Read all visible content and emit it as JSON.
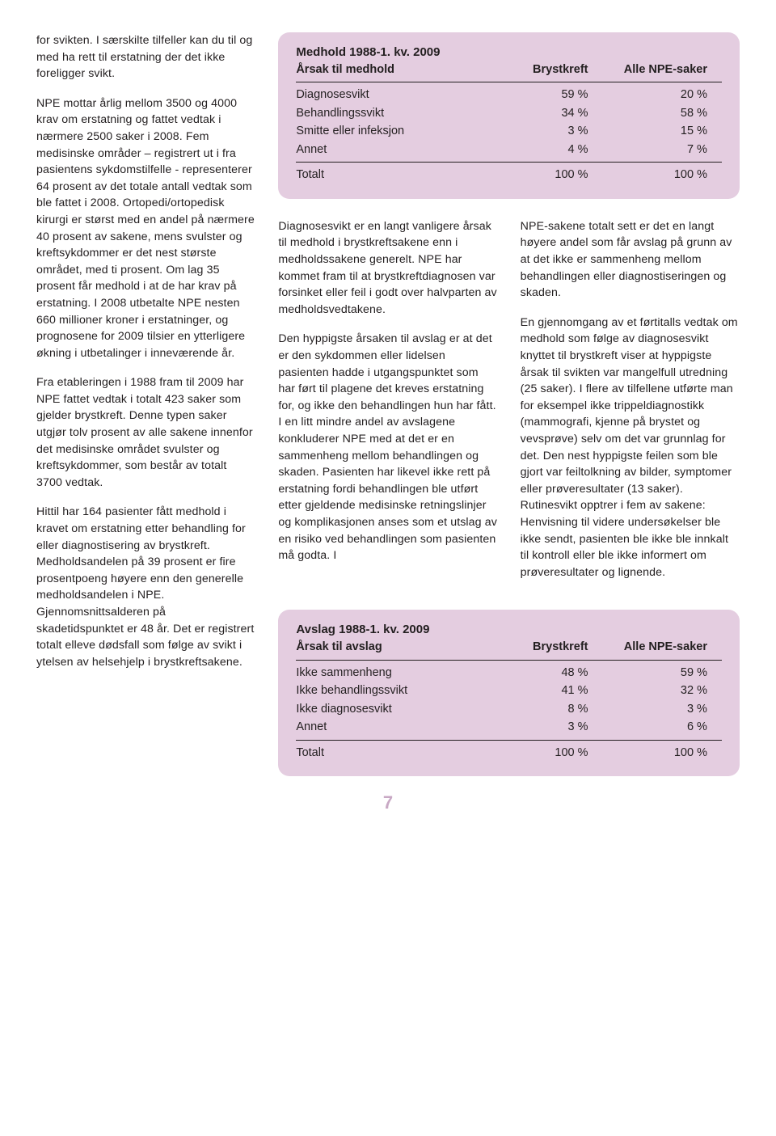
{
  "col1": {
    "p1": "for svikten. I særskilte tilfeller kan du til og med ha rett til erstatning der det ikke foreligger svikt.",
    "p2": "NPE mottar årlig mellom 3500 og 4000 krav om erstatning og fattet vedtak i nærmere 2500 saker i 2008. Fem medisinske områder – registrert ut i fra pasientens sykdomstilfelle - representerer 64 prosent av det totale antall vedtak som ble fattet i 2008. Ortopedi/ortopedisk kirurgi er størst med en andel på nærmere 40 prosent av sakene, mens svulster og kreftsykdommer er det nest største området, med ti prosent. Om lag 35 prosent får medhold i at de har krav på erstatning. I 2008 utbetalte NPE nesten 660 millioner kroner i erstatninger, og prognosene for 2009 tilsier en ytterligere økning i utbetalinger i inneværende år.",
    "p3": "Fra etableringen i 1988 fram til 2009 har NPE fattet vedtak i totalt 423 saker som gjelder brystkreft. Denne typen saker utgjør tolv prosent av alle sakene innenfor det medisinske området svulster og kreftsykdommer, som består av totalt 3700 vedtak.",
    "p4": "Hittil har 164 pasienter fått medhold i kravet om erstatning etter behandling for eller diagnostisering av brystkreft. Medholdsandelen på 39 prosent er fire prosentpoeng høyere enn den generelle medholdsandelen i NPE. Gjennomsnittsalderen på skadetidspunktet er 48 år. Det er registrert totalt elleve dødsfall som følge av svikt i ytelsen av helsehjelp i brystkreftsakene."
  },
  "medhold": {
    "title": "Medhold 1988-1. kv. 2009",
    "head": {
      "c1": "Årsak til medhold",
      "c2": "Brystkreft",
      "c3": "Alle NPE-saker"
    },
    "rows": [
      {
        "c1": "Diagnosesvikt",
        "c2": "59 %",
        "c3": "20 %"
      },
      {
        "c1": "Behandlingssvikt",
        "c2": "34 %",
        "c3": "58 %"
      },
      {
        "c1": "Smitte eller infeksjon",
        "c2": "3 %",
        "c3": "15 %"
      },
      {
        "c1": "Annet",
        "c2": "4 %",
        "c3": "7 %"
      }
    ],
    "total": {
      "c1": "Totalt",
      "c2": "100 %",
      "c3": "100 %"
    }
  },
  "midL": {
    "p1": "Diagnosesvikt er en langt vanligere årsak til medhold i brystkreftsakene enn i medholdssakene generelt. NPE har kommet fram til at brystkreftdiagnosen var forsinket eller feil i godt over halvparten av medholdsvedtakene.",
    "p2": "Den hyppigste årsaken til avslag er at det er den sykdommen eller lidelsen pasienten hadde i utgangspunktet som har ført til plagene det kreves erstatning for, og ikke den behandlingen hun har fått. I en litt mindre andel av avslagene konkluderer NPE med at det er en sammenheng mellom behandlingen og skaden. Pasienten har likevel ikke rett på erstatning fordi behandlingen ble utført etter gjeldende medisinske retningslinjer og komplikasjonen anses som et utslag av en risiko ved behandlingen som pasienten må godta. I"
  },
  "midR": {
    "p1": "NPE-sakene totalt sett er det en langt høyere andel som får avslag på grunn av at det ikke er sammenheng mellom behandlingen eller diagnostiseringen og skaden.",
    "p2": "En gjennomgang av et førtitalls vedtak om medhold som følge av diagnosesvikt knyttet til brystkreft viser at hyppigste årsak til svikten var mangelfull utredning (25 saker). I flere av tilfellene utførte man for eksempel ikke trippeldiagnostikk (mammografi, kjenne på brystet og vevsprøve) selv om det var grunnlag for det. Den nest hyppigste feilen som ble gjort var feiltolkning av bilder, symptomer eller prøveresultater (13 saker). Rutinesvikt opptrer i fem av sakene: Henvisning til videre undersøkelser ble ikke sendt, pasienten ble ikke ble innkalt til kontroll eller ble ikke informert om prøveresultater og lignende."
  },
  "avslag": {
    "title": "Avslag 1988-1. kv. 2009",
    "head": {
      "c1": "Årsak til avslag",
      "c2": "Brystkreft",
      "c3": "Alle NPE-saker"
    },
    "rows": [
      {
        "c1": "Ikke sammenheng",
        "c2": "48 %",
        "c3": "59 %"
      },
      {
        "c1": "Ikke behandlingssvikt",
        "c2": "41 %",
        "c3": "32 %"
      },
      {
        "c1": "Ikke diagnosesvikt",
        "c2": "8 %",
        "c3": "3 %"
      },
      {
        "c1": "Annet",
        "c2": "3 %",
        "c3": "6 %"
      }
    ],
    "total": {
      "c1": "Totalt",
      "c2": "100 %",
      "c3": "100 %"
    }
  },
  "pageNumber": "7",
  "colors": {
    "tableBg": "#e4cde0",
    "pageNumColor": "#c8a8c4",
    "text": "#231f20"
  }
}
